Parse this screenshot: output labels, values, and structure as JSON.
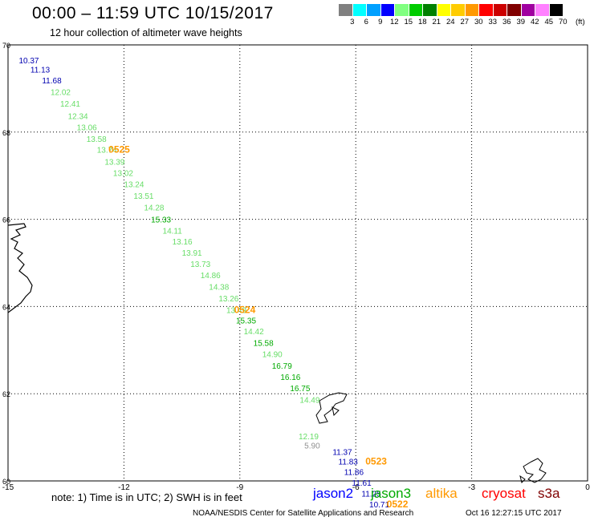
{
  "header": {
    "title": "00:00 – 11:59 UTC 10/15/2017",
    "subtitle": "12 hour collection of altimeter wave heights"
  },
  "legend": {
    "colors": [
      "#808080",
      "#00ffff",
      "#00a0ff",
      "#0000ff",
      "#80ff80",
      "#00cc00",
      "#008000",
      "#ffff00",
      "#ffcc00",
      "#ff9900",
      "#ff0000",
      "#cc0000",
      "#800000",
      "#a000a0",
      "#ff80ff",
      "#000000"
    ],
    "labels": [
      "3",
      "6",
      "9",
      "12",
      "15",
      "18",
      "21",
      "24",
      "27",
      "30",
      "33",
      "36",
      "39",
      "42",
      "45",
      "70"
    ],
    "unit": "(ft)"
  },
  "axes": {
    "lon_labels": [
      "-15",
      "-12",
      "-9",
      "-6",
      "-3",
      "0"
    ],
    "lat_labels": [
      "70",
      "68",
      "66",
      "64",
      "62",
      "60"
    ]
  },
  "observations": [
    {
      "lon": -14.72,
      "lat": 69.58,
      "value": "10.37",
      "color": "#0000b0"
    },
    {
      "lon": -14.42,
      "lat": 69.37,
      "value": "11.13",
      "color": "#0000b0"
    },
    {
      "lon": -14.12,
      "lat": 69.12,
      "value": "11.68",
      "color": "#0000b0"
    },
    {
      "lon": -13.9,
      "lat": 68.85,
      "value": "12.02",
      "color": "#66dd66"
    },
    {
      "lon": -13.65,
      "lat": 68.58,
      "value": "12.41",
      "color": "#66dd66"
    },
    {
      "lon": -13.45,
      "lat": 68.3,
      "value": "12.34",
      "color": "#66dd66"
    },
    {
      "lon": -13.22,
      "lat": 68.04,
      "value": "13.06",
      "color": "#66dd66"
    },
    {
      "lon": -12.97,
      "lat": 67.78,
      "value": "13.58",
      "color": "#66dd66"
    },
    {
      "lon": -12.7,
      "lat": 67.53,
      "value": "13.74",
      "color": "#66dd66"
    },
    {
      "lon": -12.5,
      "lat": 67.25,
      "value": "13.39",
      "color": "#66dd66"
    },
    {
      "lon": -12.28,
      "lat": 66.99,
      "value": "13.02",
      "color": "#66dd66"
    },
    {
      "lon": -12.0,
      "lat": 66.74,
      "value": "13.24",
      "color": "#66dd66"
    },
    {
      "lon": -11.75,
      "lat": 66.47,
      "value": "13.51",
      "color": "#66dd66"
    },
    {
      "lon": -11.48,
      "lat": 66.2,
      "value": "14.28",
      "color": "#66dd66"
    },
    {
      "lon": -11.3,
      "lat": 65.93,
      "value": "15.33",
      "color": "#00aa00"
    },
    {
      "lon": -11.0,
      "lat": 65.67,
      "value": "14.11",
      "color": "#66dd66"
    },
    {
      "lon": -10.75,
      "lat": 65.42,
      "value": "13.16",
      "color": "#66dd66"
    },
    {
      "lon": -10.5,
      "lat": 65.17,
      "value": "13.91",
      "color": "#66dd66"
    },
    {
      "lon": -10.28,
      "lat": 64.91,
      "value": "13.73",
      "color": "#66dd66"
    },
    {
      "lon": -10.02,
      "lat": 64.65,
      "value": "14.86",
      "color": "#66dd66"
    },
    {
      "lon": -9.8,
      "lat": 64.38,
      "value": "14.38",
      "color": "#66dd66"
    },
    {
      "lon": -9.55,
      "lat": 64.12,
      "value": "13.26",
      "color": "#66dd66"
    },
    {
      "lon": -9.35,
      "lat": 63.85,
      "value": "13.49",
      "color": "#66dd66"
    },
    {
      "lon": -9.1,
      "lat": 63.61,
      "value": "15.35",
      "color": "#00aa00"
    },
    {
      "lon": -8.9,
      "lat": 63.36,
      "value": "14.42",
      "color": "#66dd66"
    },
    {
      "lon": -8.65,
      "lat": 63.1,
      "value": "15.58",
      "color": "#00aa00"
    },
    {
      "lon": -8.42,
      "lat": 62.84,
      "value": "14.90",
      "color": "#66dd66"
    },
    {
      "lon": -8.17,
      "lat": 62.57,
      "value": "16.79",
      "color": "#00aa00"
    },
    {
      "lon": -7.95,
      "lat": 62.32,
      "value": "16.16",
      "color": "#00aa00"
    },
    {
      "lon": -7.7,
      "lat": 62.06,
      "value": "16.75",
      "color": "#00aa00"
    },
    {
      "lon": -7.45,
      "lat": 61.79,
      "value": "14.49",
      "color": "#66dd66"
    },
    {
      "lon": -7.48,
      "lat": 60.96,
      "value": "12.19",
      "color": "#66dd66"
    },
    {
      "lon": -7.33,
      "lat": 60.74,
      "value": "5.90",
      "color": "#909090"
    },
    {
      "lon": -6.6,
      "lat": 60.6,
      "value": "11.37",
      "color": "#0000b0"
    },
    {
      "lon": -6.45,
      "lat": 60.38,
      "value": "11.83",
      "color": "#0000b0"
    },
    {
      "lon": -6.3,
      "lat": 60.14,
      "value": "11.86",
      "color": "#0000b0"
    },
    {
      "lon": -6.1,
      "lat": 59.89,
      "value": "11.61",
      "color": "#0000b0"
    },
    {
      "lon": -5.85,
      "lat": 59.64,
      "value": "11.25",
      "color": "#0000b0"
    },
    {
      "lon": -5.65,
      "lat": 59.39,
      "value": "10.71",
      "color": "#0000b0"
    }
  ],
  "time_labels": [
    {
      "lon": -12.4,
      "lat": 67.53,
      "text": "0525"
    },
    {
      "lon": -9.15,
      "lat": 63.85,
      "text": "0524"
    },
    {
      "lon": -5.75,
      "lat": 60.38,
      "text": "0523"
    },
    {
      "lon": -5.2,
      "lat": 59.39,
      "text": "0522"
    }
  ],
  "time_label_color": "#ff9900",
  "footer": {
    "note": "note: 1) Time is in UTC; 2) SWH is in feet",
    "satellites": [
      {
        "name": "jason2",
        "color": "#0000ff"
      },
      {
        "name": "jason3",
        "color": "#00aa00"
      },
      {
        "name": "altika",
        "color": "#ff9900"
      },
      {
        "name": "cryosat",
        "color": "#ff0000"
      },
      {
        "name": "s3a",
        "color": "#800000"
      }
    ],
    "credit": "NOAA/NESDIS Center for Satellite Applications and Research",
    "timestamp": "Oct 16 12:27:15 UTC 2017"
  }
}
